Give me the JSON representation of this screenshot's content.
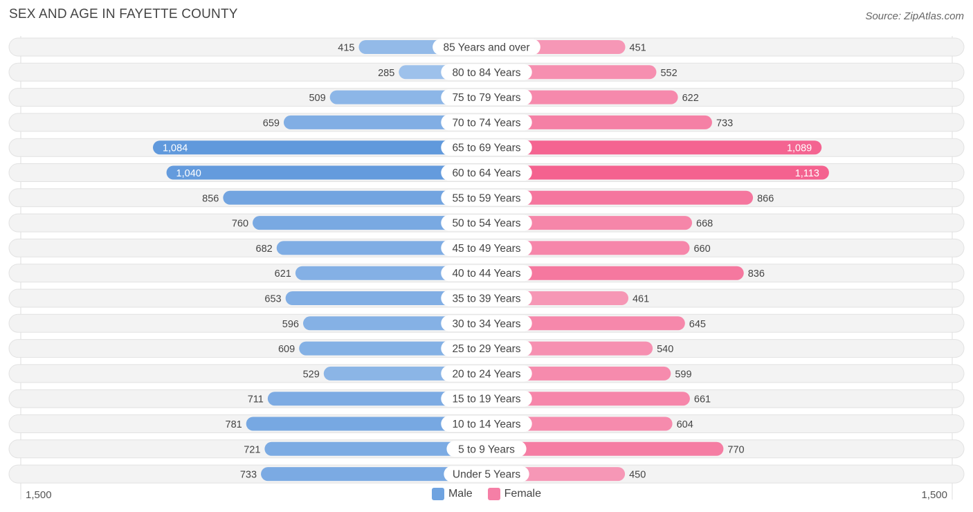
{
  "title": "SEX AND AGE IN FAYETTE COUNTY",
  "source": "Source: ZipAtlas.com",
  "axis": {
    "left_label": "1,500",
    "right_label": "1,500"
  },
  "legend": [
    {
      "label": "Male",
      "color": "#6fa3e0"
    },
    {
      "label": "Female",
      "color": "#f57fa6"
    }
  ],
  "chart_data": {
    "type": "bar",
    "orientation": "horizontal-diverging",
    "xlim": [
      -1500,
      1500
    ],
    "categories": [
      "85 Years and over",
      "80 to 84 Years",
      "75 to 79 Years",
      "70 to 74 Years",
      "65 to 69 Years",
      "60 to 64 Years",
      "55 to 59 Years",
      "50 to 54 Years",
      "45 to 49 Years",
      "40 to 44 Years",
      "35 to 39 Years",
      "30 to 34 Years",
      "25 to 29 Years",
      "20 to 24 Years",
      "15 to 19 Years",
      "10 to 14 Years",
      "5 to 9 Years",
      "Under 5 Years"
    ],
    "series": [
      {
        "name": "Male",
        "values": [
          415,
          285,
          509,
          659,
          1084,
          1040,
          856,
          760,
          682,
          621,
          653,
          596,
          609,
          529,
          711,
          781,
          721,
          733
        ],
        "labels": [
          "415",
          "285",
          "509",
          "659",
          "1,084",
          "1,040",
          "856",
          "760",
          "682",
          "621",
          "653",
          "596",
          "609",
          "529",
          "711",
          "781",
          "721",
          "733"
        ]
      },
      {
        "name": "Female",
        "values": [
          451,
          552,
          622,
          733,
          1089,
          1113,
          866,
          668,
          660,
          836,
          461,
          645,
          540,
          599,
          661,
          604,
          770,
          450
        ],
        "labels": [
          "451",
          "552",
          "622",
          "733",
          "1,089",
          "1,113",
          "866",
          "668",
          "660",
          "836",
          "461",
          "645",
          "540",
          "599",
          "661",
          "604",
          "770",
          "450"
        ]
      }
    ]
  }
}
